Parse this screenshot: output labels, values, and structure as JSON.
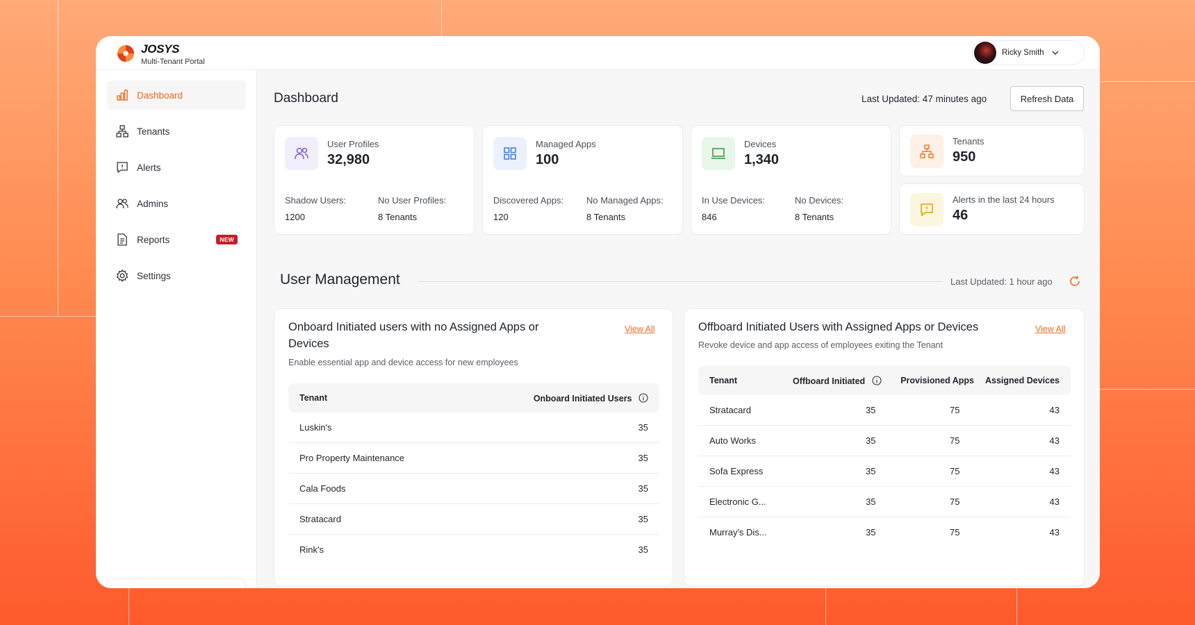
{
  "app": {
    "logo_name": "JOSYS",
    "logo_sub": "Multi-Tenant Portal",
    "user_name": "Ricky Smith",
    "brand_color": "#f06a1d"
  },
  "sidebar": {
    "items": [
      {
        "label": "Dashboard",
        "icon": "bar-chart-icon",
        "active": true
      },
      {
        "label": "Tenants",
        "icon": "hierarchy-icon"
      },
      {
        "label": "Alerts",
        "icon": "alert-message-icon"
      },
      {
        "label": "Admins",
        "icon": "users-icon"
      },
      {
        "label": "Reports",
        "icon": "document-icon",
        "badge": "NEW"
      },
      {
        "label": "Settings",
        "icon": "gear-icon"
      }
    ]
  },
  "header": {
    "title": "Dashboard",
    "last_updated": "Last Updated: 47 minutes ago",
    "refresh_label": "Refresh Data"
  },
  "stats": [
    {
      "label": "User Profiles",
      "value": "32,980",
      "icon": "users-icon",
      "sub": [
        {
          "label": "Shadow Users:",
          "value": "1200"
        },
        {
          "label": "No User Profiles:",
          "value": "8 Tenants"
        }
      ]
    },
    {
      "label": "Managed Apps",
      "value": "100",
      "icon": "grid-icon",
      "sub": [
        {
          "label": "Discovered Apps:",
          "value": "120"
        },
        {
          "label": "No Managed Apps:",
          "value": "8 Tenants"
        }
      ]
    },
    {
      "label": "Devices",
      "value": "1,340",
      "icon": "laptop-icon",
      "sub": [
        {
          "label": "In Use Devices:",
          "value": "846"
        },
        {
          "label": "No Devices:",
          "value": "8 Tenants"
        }
      ]
    },
    {
      "label": "Tenants",
      "value": "950",
      "icon": "hierarchy-icon"
    },
    {
      "label": "Alerts in the last 24 hours",
      "value": "46",
      "icon": "alert-message-icon"
    }
  ],
  "user_management": {
    "title": "User Management",
    "last_updated": "Last Updated: 1 hour ago",
    "onboard": {
      "title_line1": "Onboard Initiated users with no Assigned Apps or",
      "title_line2": "Devices",
      "subtitle": "Enable essential app and device access for new employees",
      "view_all": "View All",
      "columns": [
        "Tenant",
        "Onboard Initiated Users"
      ],
      "rows": [
        {
          "tenant": "Luskin's",
          "count": "35"
        },
        {
          "tenant": "Pro Property Maintenance",
          "count": "35"
        },
        {
          "tenant": "Cala Foods",
          "count": "35"
        },
        {
          "tenant": "Stratacard",
          "count": "35"
        },
        {
          "tenant": "Rink's",
          "count": "35"
        }
      ]
    },
    "offboard": {
      "title": "Offboard Initiated Users with Assigned Apps or Devices",
      "subtitle": "Revoke device and app access of employees exiting the Tenant",
      "view_all": "View All",
      "columns": [
        "Tenant",
        "Offboard Initiated",
        "Provisioned Apps",
        "Assigned Devices"
      ],
      "rows": [
        {
          "tenant": "Stratacard",
          "offboard": "35",
          "apps": "75",
          "devices": "43"
        },
        {
          "tenant": "Auto Works",
          "offboard": "35",
          "apps": "75",
          "devices": "43"
        },
        {
          "tenant": "Sofa Express",
          "offboard": "35",
          "apps": "75",
          "devices": "43"
        },
        {
          "tenant": "Electronic G...",
          "offboard": "35",
          "apps": "75",
          "devices": "43"
        },
        {
          "tenant": "Murray's Dis...",
          "offboard": "35",
          "apps": "75",
          "devices": "43"
        }
      ]
    }
  }
}
